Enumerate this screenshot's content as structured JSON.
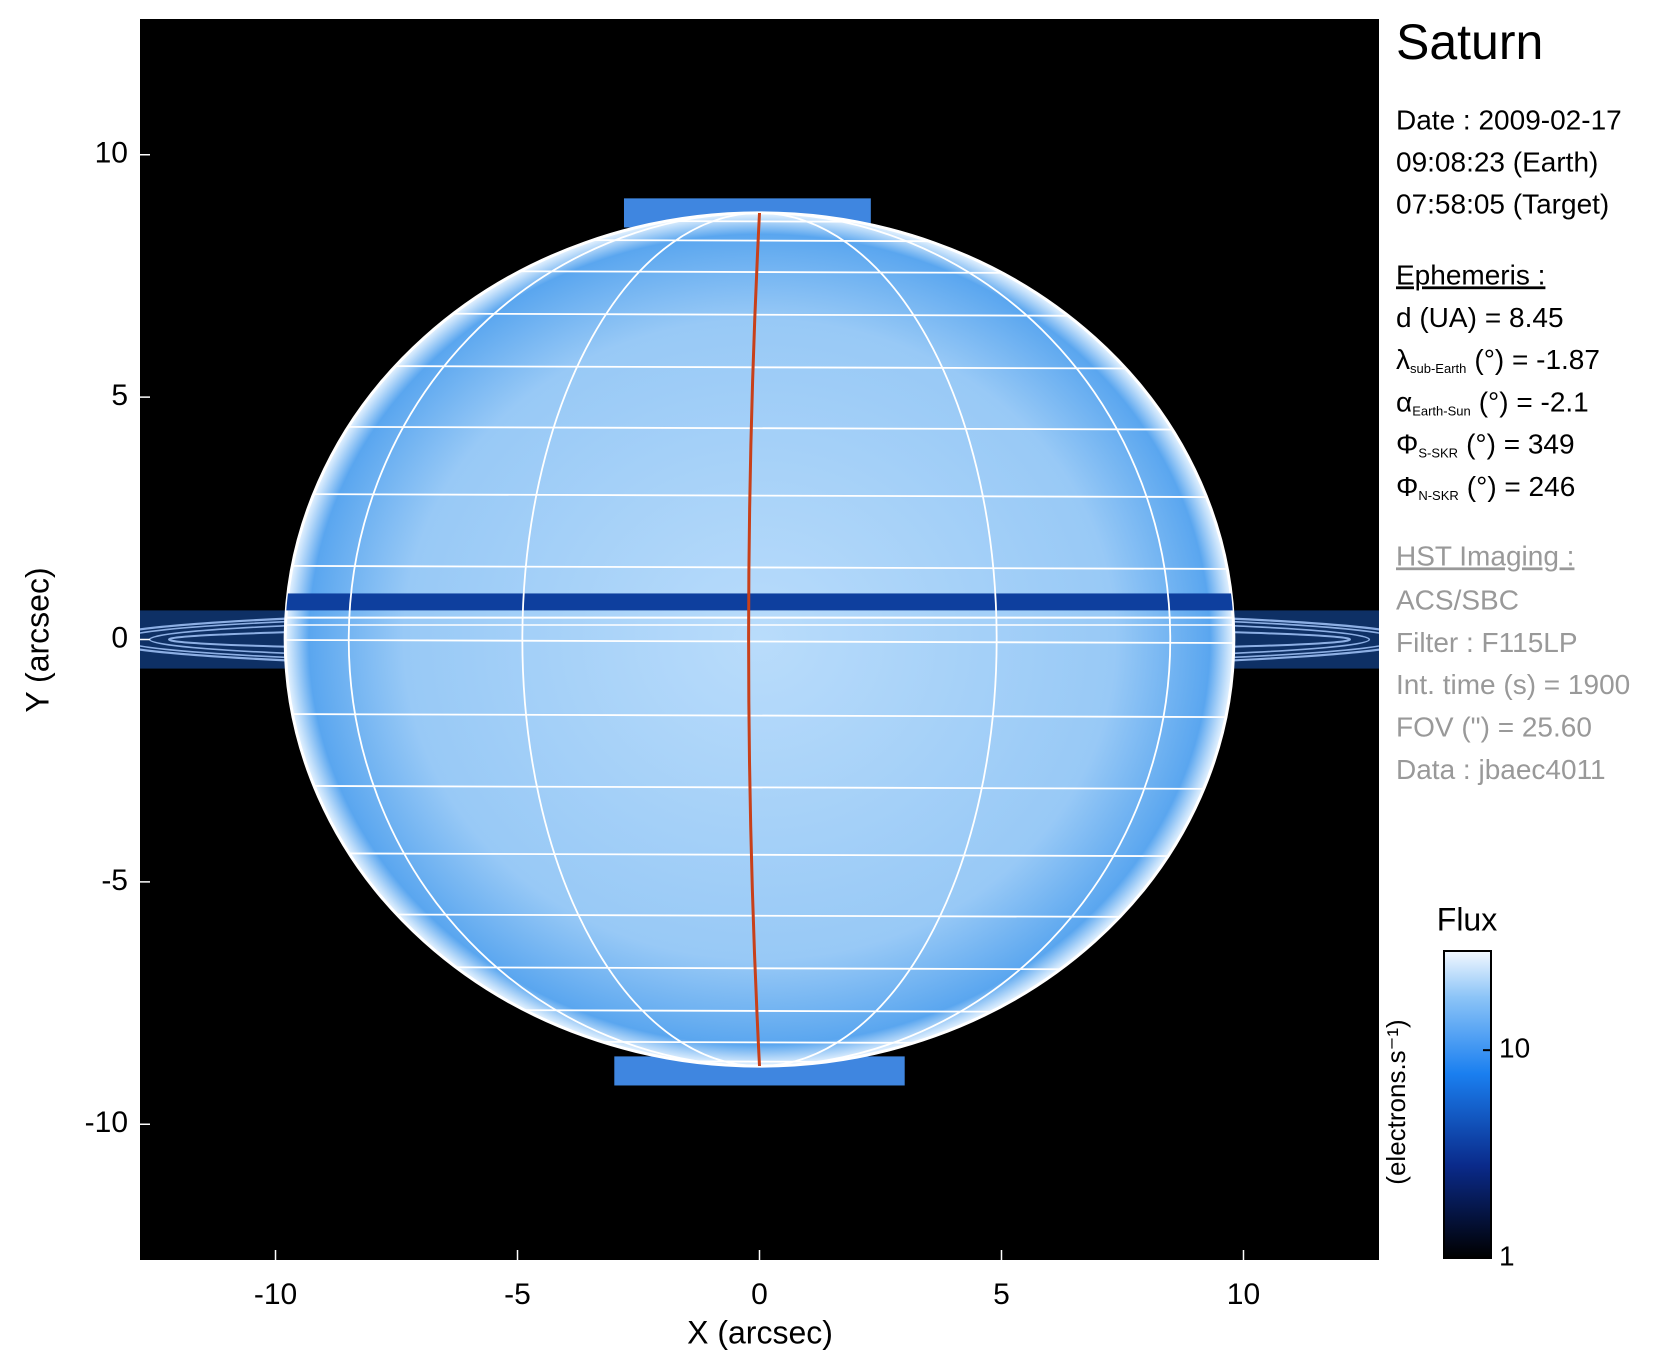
{
  "chart_data": {
    "type": "image",
    "xlabel": "X (arcsec)",
    "ylabel": "Y (arcsec)",
    "xlim": [
      -12.8,
      12.8
    ],
    "ylim": [
      -12.8,
      12.8
    ],
    "xticks": [
      -10,
      -5,
      0,
      5,
      10
    ],
    "yticks": [
      -10,
      -5,
      0,
      5,
      10
    ],
    "colorbar": {
      "title": "Flux",
      "label": "(electrons.s⁻¹)",
      "clim": [
        1,
        30
      ],
      "ticks": [
        1,
        10
      ],
      "log": true
    },
    "panel": {
      "title": "Saturn",
      "date": [
        "Date : 2009-02-17",
        "09:08:23 (Earth)",
        "07:58:05 (Target)"
      ],
      "ephemeris": {
        "heading": "Ephemeris :",
        "rows": [
          {
            "symbol": "d (UA)",
            "rest": "= 8.45"
          },
          {
            "symbol": "λ",
            "sub": "sub-Earth",
            "rest": "(°) = -1.87"
          },
          {
            "symbol": "α",
            "sub": "Earth-Sun",
            "rest": "(°) = -2.1"
          },
          {
            "symbol": "Φ",
            "sub": "S-SKR",
            "rest": "(°)   = 349"
          },
          {
            "symbol": "Φ",
            "sub": "N-SKR",
            "rest": "(°)   = 246"
          }
        ]
      },
      "imaging": {
        "heading": "HST Imaging :",
        "lines": [
          "ACS/SBC",
          "Filter : F115LP",
          "Int. time (s) = 1900",
          "FOV (\") = 25.60",
          "Data : jbaec4011"
        ]
      }
    }
  }
}
